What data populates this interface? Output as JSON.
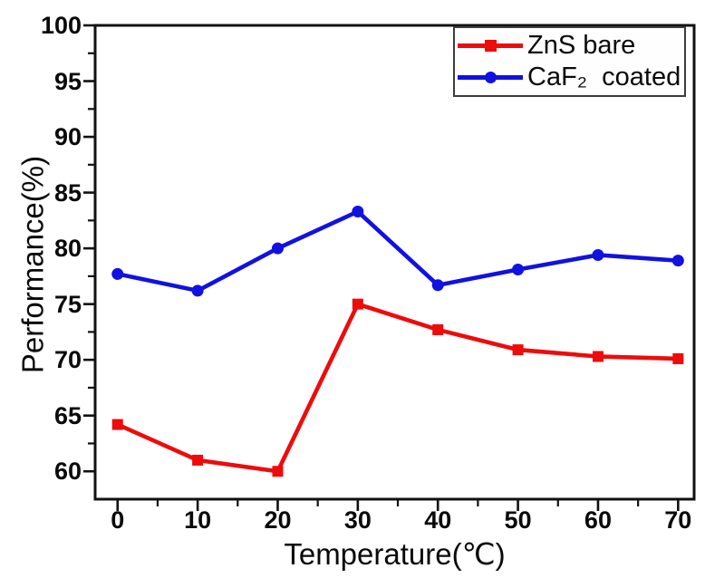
{
  "chart_data": {
    "type": "line",
    "x": [
      0,
      10,
      20,
      30,
      40,
      50,
      60,
      70
    ],
    "series": [
      {
        "name": "ZnS bare",
        "color": "#ee0b0b",
        "marker": "square",
        "values": [
          64.2,
          61.0,
          60.0,
          75.0,
          72.7,
          70.9,
          70.3,
          70.1
        ]
      },
      {
        "name": "CaF₂  coated",
        "color": "#1111e0",
        "marker": "circle",
        "values": [
          77.7,
          76.2,
          80.0,
          83.3,
          76.7,
          78.1,
          79.4,
          78.9
        ]
      }
    ],
    "xlabel": "Temperature(℃)",
    "ylabel": "Performance(%)",
    "xlim": [
      -2.8,
      72.0
    ],
    "ylim": [
      57.5,
      100
    ],
    "x_major_ticks": [
      0,
      10,
      20,
      30,
      40,
      50,
      60,
      70
    ],
    "x_minor_ticks": [
      5,
      15,
      25,
      35,
      45,
      55,
      65
    ],
    "y_major_ticks": [
      60,
      65,
      70,
      75,
      80,
      85,
      90,
      95,
      100
    ],
    "y_minor_ticks": [
      62.5,
      67.5,
      72.5,
      77.5,
      82.5,
      87.5,
      92.5,
      97.5
    ],
    "grid": false,
    "legend_position": "top-right",
    "axis_color": "#111111"
  }
}
